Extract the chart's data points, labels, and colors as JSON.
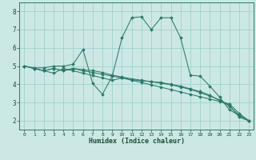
{
  "xlabel": "Humidex (Indice chaleur)",
  "bg_color": "#cce8e4",
  "grid_color": "#99cccc",
  "line_color": "#2a7a6a",
  "xlim": [
    -0.5,
    23.5
  ],
  "ylim": [
    1.5,
    8.5
  ],
  "xticks": [
    0,
    1,
    2,
    3,
    4,
    5,
    6,
    7,
    8,
    9,
    10,
    11,
    12,
    13,
    14,
    15,
    16,
    17,
    18,
    19,
    20,
    21,
    22,
    23
  ],
  "yticks": [
    2,
    3,
    4,
    5,
    6,
    7,
    8
  ],
  "lines": [
    {
      "x": [
        0,
        1,
        2,
        3,
        4,
        5,
        6,
        7,
        8,
        9,
        10,
        11,
        12,
        13,
        14,
        15,
        16,
        17,
        18,
        19,
        20,
        21,
        22,
        23
      ],
      "y": [
        5.0,
        4.9,
        4.9,
        5.0,
        5.0,
        5.1,
        5.9,
        4.05,
        3.45,
        4.45,
        6.55,
        7.65,
        7.7,
        7.0,
        7.65,
        7.65,
        6.55,
        4.5,
        4.45,
        3.9,
        3.3,
        2.6,
        2.3,
        2.0
      ]
    },
    {
      "x": [
        0,
        1,
        2,
        3,
        4,
        5,
        6,
        7,
        8,
        9,
        10,
        11,
        12,
        13,
        14,
        15,
        16,
        17,
        18,
        19,
        20,
        21,
        22,
        23
      ],
      "y": [
        5.0,
        4.87,
        4.74,
        4.61,
        4.87,
        4.74,
        4.61,
        4.48,
        4.35,
        4.22,
        4.35,
        4.22,
        4.1,
        3.97,
        3.84,
        3.71,
        3.58,
        3.45,
        3.32,
        3.19,
        3.06,
        2.93,
        2.4,
        2.0
      ]
    },
    {
      "x": [
        0,
        1,
        2,
        3,
        4,
        5,
        6,
        7,
        8,
        9,
        10,
        11,
        12,
        13,
        14,
        15,
        16,
        17,
        18,
        19,
        20,
        21,
        22,
        23
      ],
      "y": [
        5.0,
        4.87,
        4.74,
        4.87,
        4.74,
        4.87,
        4.74,
        4.65,
        4.55,
        4.45,
        4.35,
        4.25,
        4.2,
        4.15,
        4.1,
        4.0,
        3.9,
        3.75,
        3.6,
        3.4,
        3.1,
        2.8,
        2.3,
        2.0
      ]
    },
    {
      "x": [
        0,
        1,
        2,
        3,
        4,
        5,
        6,
        7,
        8,
        9,
        10,
        11,
        12,
        13,
        14,
        15,
        16,
        17,
        18,
        19,
        20,
        21,
        22,
        23
      ],
      "y": [
        5.0,
        4.87,
        4.74,
        4.87,
        4.74,
        4.87,
        4.8,
        4.75,
        4.65,
        4.5,
        4.4,
        4.3,
        4.22,
        4.14,
        4.06,
        3.98,
        3.85,
        3.72,
        3.55,
        3.35,
        3.15,
        2.85,
        2.2,
        2.0
      ]
    }
  ]
}
